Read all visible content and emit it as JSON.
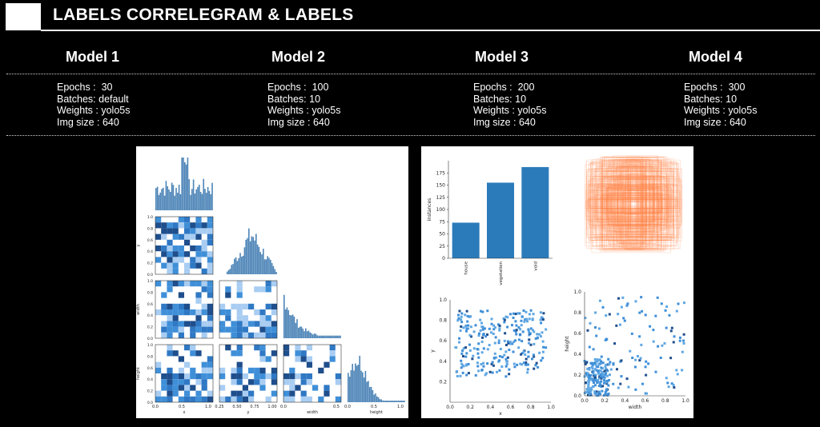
{
  "header": {
    "title": "LABELS CORRELEGRAM & LABELS"
  },
  "models": [
    {
      "name": "Model 1",
      "epochs_label": "Epochs :",
      "epochs": "30",
      "batches": "Batches: default",
      "weights": "Weights : yolo5s",
      "img_size": "Img size : 640"
    },
    {
      "name": "Model 2",
      "epochs_label": "Epochs :",
      "epochs": "100",
      "batches": "Batches: 10",
      "weights": "Weights : yolo5s",
      "img_size": "Img size : 640"
    },
    {
      "name": "Model 3",
      "epochs_label": "Epochs :",
      "epochs": "200",
      "batches": "Batches: 10",
      "weights": "Weights : yolo5s",
      "img_size": "Img size : 640"
    },
    {
      "name": "Model 4",
      "epochs_label": "Epochs :",
      "epochs": "300",
      "batches": "Batches: 10",
      "weights": "Weights : yolo5s",
      "img_size": "Img size : 640"
    }
  ],
  "correlogram": {
    "xlabels": [
      "x",
      "y",
      "width",
      "height"
    ],
    "ylabels": [
      "y",
      "width",
      "height"
    ],
    "x_ticks_x": [
      "0.0",
      "0.5",
      "1.0"
    ],
    "x_ticks_y": [
      "0.25",
      "0.50",
      "0.75",
      "1.00"
    ],
    "x_ticks_width": [
      "0.0",
      "0.5"
    ],
    "x_ticks_height": [
      "0.0",
      "0.5",
      "1.0"
    ],
    "y_ticks": [
      "0.0",
      "0.2",
      "0.4",
      "0.6",
      "0.8",
      "1.0"
    ]
  },
  "labels_panel": {
    "bar_chart": {
      "type": "bar",
      "categories": [
        "house",
        "vegetation",
        "void"
      ],
      "values": [
        73,
        155,
        187
      ],
      "ylabel": "instances",
      "yticks": [
        "0",
        "25",
        "50",
        "75",
        "100",
        "125",
        "150",
        "175"
      ],
      "ylim": [
        0,
        200
      ]
    },
    "scatter_xy": {
      "xlabel": "x",
      "ylabel": "y",
      "xticks": [
        "0.0",
        "0.2",
        "0.4",
        "0.6",
        "0.8",
        "1.0"
      ],
      "yticks": [
        "0.2",
        "0.4",
        "0.6",
        "0.8",
        "1.0"
      ]
    },
    "scatter_wh": {
      "xlabel": "width",
      "ylabel": "height",
      "xticks": [
        "0.0",
        "0.2",
        "0.4",
        "0.6",
        "0.8",
        "1.0"
      ],
      "yticks": [
        "0.0",
        "0.2",
        "0.4",
        "0.6",
        "0.8",
        "1.0"
      ]
    }
  },
  "colors": {
    "bar": "#2b7bba",
    "heat_dark": "#1f4e8c",
    "heat_mid": "#3f8fd8",
    "heat_light": "#a9cdf2",
    "box_orange": "#ff7f3f"
  }
}
